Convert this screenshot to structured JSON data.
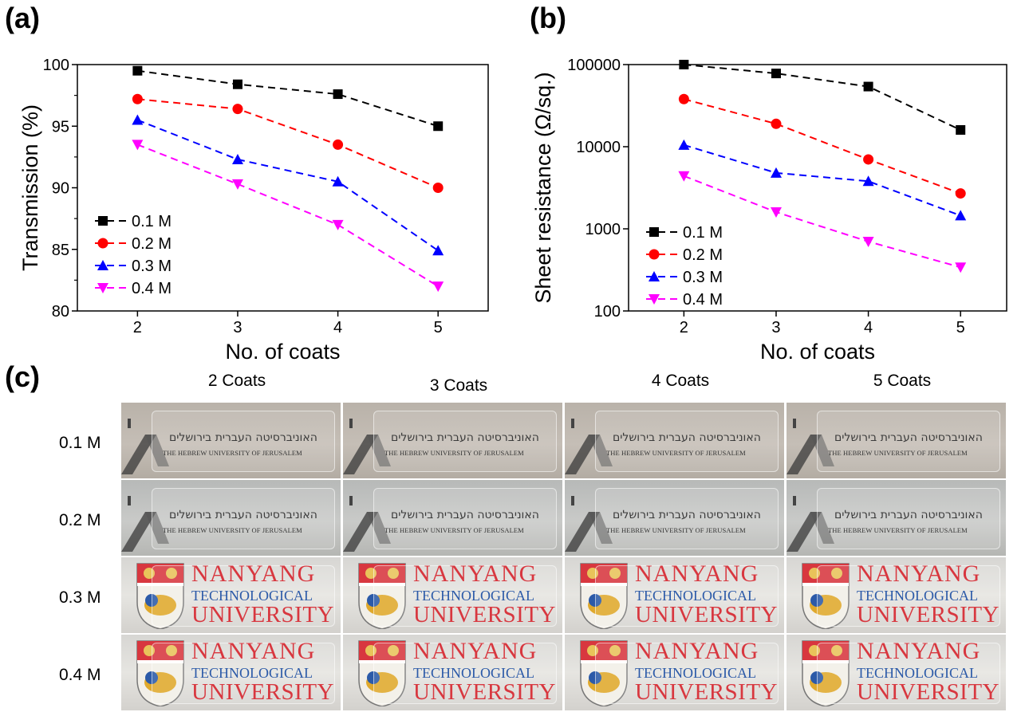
{
  "panels": {
    "a": "(a)",
    "b": "(b)",
    "c": "(c)"
  },
  "chart_data": [
    {
      "type": "line",
      "x": [
        2,
        3,
        4,
        5
      ],
      "xlabel": "No. of coats",
      "ylabel": "Transmission (%)",
      "xlim": [
        1.4,
        5.5
      ],
      "ylim": [
        80,
        100
      ],
      "yticks": [
        80,
        85,
        90,
        95,
        100
      ],
      "xticks": [
        2,
        3,
        4,
        5
      ],
      "legend_position": "bottom-left",
      "series": [
        {
          "name": "0.1 M",
          "color": "#000000",
          "marker": "square",
          "values": [
            99.5,
            98.4,
            97.6,
            95.0
          ]
        },
        {
          "name": "0.2 M",
          "color": "#ff0000",
          "marker": "circle",
          "values": [
            97.2,
            96.4,
            93.5,
            90.0
          ]
        },
        {
          "name": "0.3 M",
          "color": "#0000ff",
          "marker": "triangle-up",
          "values": [
            95.5,
            92.3,
            90.5,
            84.9
          ]
        },
        {
          "name": "0.4 M",
          "color": "#ff00ff",
          "marker": "triangle-down",
          "values": [
            93.5,
            90.3,
            87.0,
            82.0
          ]
        }
      ]
    },
    {
      "type": "line",
      "x": [
        2,
        3,
        4,
        5
      ],
      "xlabel": "No. of coats",
      "ylabel": "Sheet resistance (Ω/sq.)",
      "yscale": "log",
      "xlim": [
        1.4,
        5.5
      ],
      "ylim": [
        100,
        100000
      ],
      "yticks": [
        100,
        1000,
        10000,
        100000
      ],
      "xticks": [
        2,
        3,
        4,
        5
      ],
      "legend_position": "bottom-left",
      "series": [
        {
          "name": "0.1 M",
          "color": "#000000",
          "marker": "square",
          "values": [
            100000,
            78000,
            54000,
            16000
          ]
        },
        {
          "name": "0.2 M",
          "color": "#ff0000",
          "marker": "circle",
          "values": [
            38000,
            19000,
            7000,
            2700
          ]
        },
        {
          "name": "0.3 M",
          "color": "#0000ff",
          "marker": "triangle-up",
          "values": [
            10500,
            4800,
            3800,
            1450
          ]
        },
        {
          "name": "0.4 M",
          "color": "#ff00ff",
          "marker": "triangle-down",
          "values": [
            4400,
            1600,
            700,
            340
          ]
        }
      ]
    }
  ],
  "photos": {
    "columns": [
      "2 Coats",
      "3 Coats",
      "4 Coats",
      "5 Coats"
    ],
    "rows": [
      "0.1 M",
      "0.2 M",
      "0.3 M",
      "0.4 M"
    ],
    "hebrew_text": "האוניברסיטה העברית בירושלים",
    "hebrew_english": "THE HEBREW UNIVERSITY OF JERUSALEM",
    "ntu_line1": "NANYANG",
    "ntu_line2": "TECHNOLOGICAL",
    "ntu_line3": "UNIVERSITY"
  }
}
